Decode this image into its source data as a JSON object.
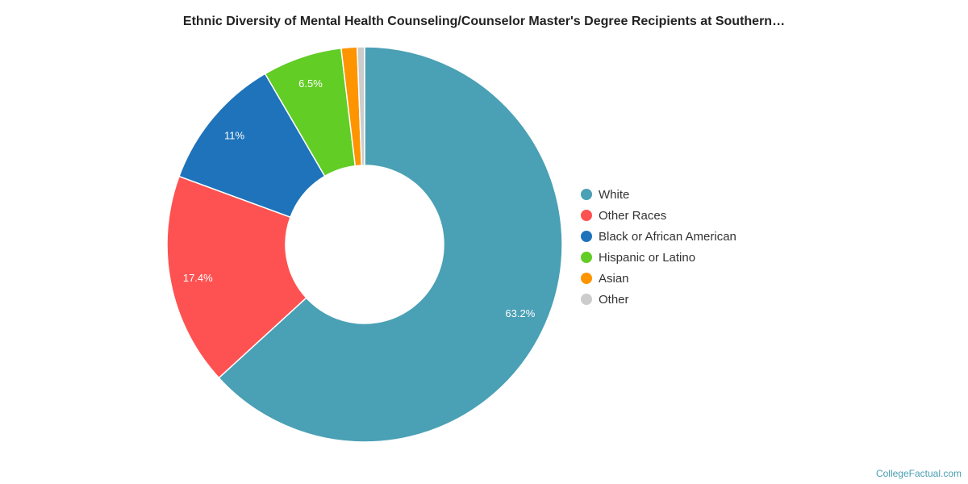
{
  "title": "Ethnic Diversity of Mental Health Counseling/Counselor Master's Degree Recipients at Southern…",
  "credit": "CollegeFactual.com",
  "chart_data": {
    "type": "pie",
    "donut": true,
    "legend_position": "right",
    "categories": [
      "White",
      "Other Races",
      "Black or African American",
      "Hispanic or Latino",
      "Asian",
      "Other"
    ],
    "values": [
      63.2,
      17.4,
      11,
      6.5,
      1.3,
      0.6
    ],
    "data_labels": [
      "63.2%",
      "17.4%",
      "11%",
      "6.5%",
      "",
      ""
    ],
    "colors": [
      "#4aa0b4",
      "#fe5252",
      "#1e73ba",
      "#62cd25",
      "#fe9400",
      "#cccccc"
    ]
  }
}
